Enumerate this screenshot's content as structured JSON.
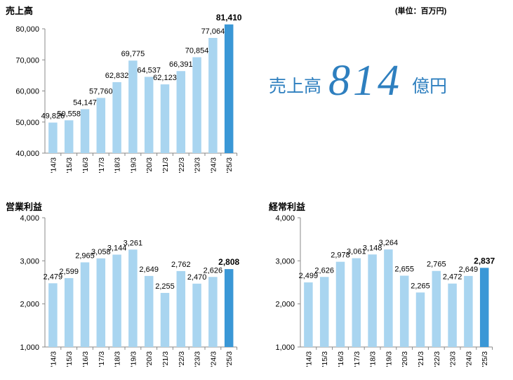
{
  "unit_note": "(単位：百万円)",
  "headline": {
    "label": "売上高",
    "value": "814",
    "unit": "億円"
  },
  "colors": {
    "bar": "#a9d5f0",
    "highlight": "#3a97d6",
    "axis": "#888888",
    "headline": "#2e7fbf"
  },
  "chart_data": [
    {
      "type": "bar",
      "title": "売上高",
      "categories": [
        "'14/3",
        "'15/3",
        "'16/3",
        "'17/3",
        "'18/3",
        "'19/3",
        "'20/3",
        "'21/3",
        "'22/3",
        "'23/3",
        "'24/3",
        "'25/3"
      ],
      "values": [
        49826,
        50558,
        54147,
        57760,
        62832,
        69775,
        64537,
        62123,
        66391,
        70854,
        77064,
        81410
      ],
      "value_labels": [
        "49,826",
        "50,558",
        "54,147",
        "57,760",
        "62,832",
        "69,775",
        "64,537",
        "62,123",
        "66,391",
        "70,854",
        "77,064",
        "81,410"
      ],
      "ylim": [
        40000,
        80000
      ],
      "yticks": [
        "40,000",
        "50,000",
        "60,000",
        "70,000",
        "80,000"
      ],
      "highlight_index": 11,
      "grid": false
    },
    {
      "type": "bar",
      "title": "営業利益",
      "categories": [
        "'14/3",
        "'15/3",
        "'16/3",
        "'17/3",
        "'18/3",
        "'19/3",
        "'20/3",
        "'21/3",
        "'22/3",
        "'23/3",
        "'24/3",
        "'25/3"
      ],
      "values": [
        2479,
        2599,
        2965,
        3058,
        3144,
        3261,
        2649,
        2255,
        2762,
        2470,
        2626,
        2808
      ],
      "value_labels": [
        "2,479",
        "2,599",
        "2,965",
        "3,058",
        "3,144",
        "3,261",
        "2,649",
        "2,255",
        "2,762",
        "2,470",
        "2,626",
        "2,808"
      ],
      "ylim": [
        1000,
        4000
      ],
      "yticks": [
        "1,000",
        "2,000",
        "3,000",
        "4,000"
      ],
      "highlight_index": 11,
      "grid": false
    },
    {
      "type": "bar",
      "title": "経常利益",
      "categories": [
        "'14/3",
        "'15/3",
        "'16/3",
        "'17/3",
        "'18/3",
        "'19/3",
        "'20/3",
        "'21/3",
        "'22/3",
        "'23/3",
        "'24/3",
        "'25/3"
      ],
      "values": [
        2499,
        2626,
        2978,
        3061,
        3148,
        3264,
        2655,
        2265,
        2765,
        2472,
        2649,
        2837
      ],
      "value_labels": [
        "2,499",
        "2,626",
        "2,978",
        "3,061",
        "3,148",
        "3,264",
        "2,655",
        "2,265",
        "2,765",
        "2,472",
        "2,649",
        "2,837"
      ],
      "ylim": [
        1000,
        4000
      ],
      "yticks": [
        "1,000",
        "2,000",
        "3,000",
        "4,000"
      ],
      "highlight_index": 11,
      "grid": false
    }
  ]
}
